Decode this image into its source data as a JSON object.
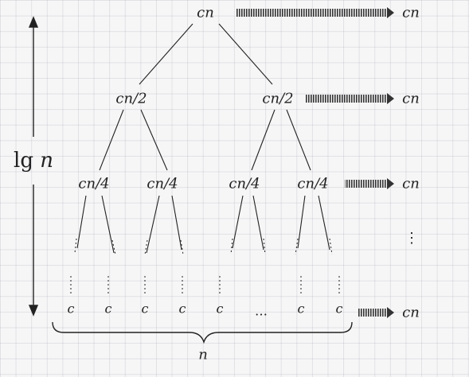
{
  "tree": {
    "root": "cn",
    "level1": [
      "cn/2",
      "cn/2"
    ],
    "level2": [
      "cn/4",
      "cn/4",
      "cn/4",
      "cn/4"
    ],
    "leaves": [
      "c",
      "c",
      "c",
      "c",
      "c",
      "c",
      "c"
    ],
    "leaf_ellipsis": "…"
  },
  "level_costs": [
    "cn",
    "cn",
    "cn",
    "cn"
  ],
  "vertical_ellipsis": "⋮",
  "height_label": {
    "prefix": "lg",
    "var": "n"
  },
  "width_label": "n",
  "colors": {
    "ink": "#222222",
    "grid": "#c8c8d2",
    "background": "#f6f6f7"
  }
}
